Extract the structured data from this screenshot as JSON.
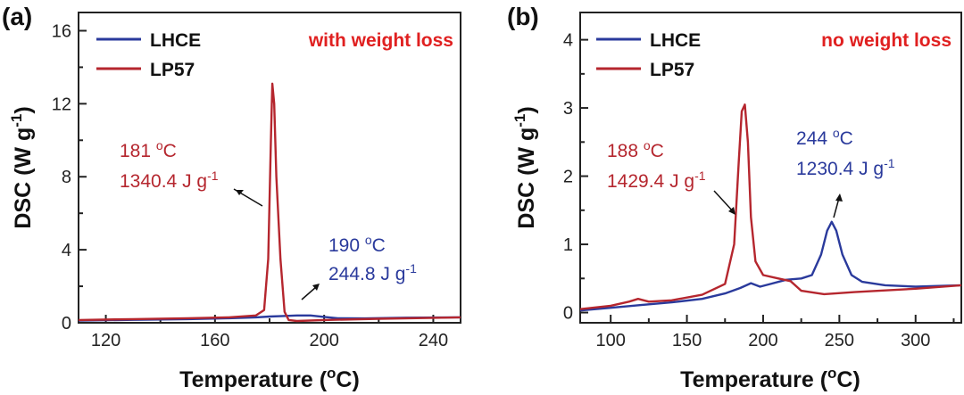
{
  "colors": {
    "LHCE": "#2a3a9c",
    "LP57": "#b5262e",
    "condition": "#e02020"
  },
  "chart_data": [
    {
      "type": "line",
      "panel_label": "(a)",
      "condition_text": "with weight loss",
      "xlabel": "Temperature (",
      "xlabel_sup": "o",
      "xlabel_tail": "C)",
      "ylabel": "DSC (W g",
      "ylabel_sup": "-1",
      "ylabel_tail": ")",
      "xlim": [
        110,
        250
      ],
      "ylim": [
        0,
        17
      ],
      "xticks": [
        "120",
        "160",
        "200",
        "240"
      ],
      "yticks": [
        "0",
        "4",
        "8",
        "12",
        "16"
      ],
      "legend": [
        "LHCE",
        "LP57"
      ],
      "series": [
        {
          "name": "LHCE",
          "x": [
            110,
            130,
            150,
            165,
            175,
            180,
            185,
            190,
            195,
            200,
            205,
            215,
            230,
            250
          ],
          "y": [
            0.12,
            0.16,
            0.2,
            0.25,
            0.3,
            0.34,
            0.37,
            0.4,
            0.4,
            0.32,
            0.25,
            0.24,
            0.28,
            0.3
          ]
        },
        {
          "name": "LP57",
          "x": [
            110,
            130,
            150,
            165,
            175,
            178,
            179.5,
            180.5,
            181,
            181.7,
            182.5,
            184,
            185.5,
            187,
            190,
            200,
            220,
            250
          ],
          "y": [
            0.15,
            0.2,
            0.25,
            0.3,
            0.4,
            0.7,
            3.5,
            10,
            13.1,
            12,
            8,
            3.5,
            0.6,
            0.15,
            0.1,
            0.15,
            0.22,
            0.3
          ]
        }
      ],
      "annotations": [
        {
          "series": "LP57",
          "line1": "181 ",
          "line1_sup": "o",
          "line1_tail": "C",
          "line2": "1340.4 J g",
          "line2_sup": "-1"
        },
        {
          "series": "LHCE",
          "line1": "190 ",
          "line1_sup": "o",
          "line1_tail": "C",
          "line2": "244.8 J g",
          "line2_sup": "-1"
        }
      ]
    },
    {
      "type": "line",
      "panel_label": "(b)",
      "condition_text": "no weight loss",
      "xlabel": "Temperature (",
      "xlabel_sup": "o",
      "xlabel_tail": "C)",
      "ylabel": "DSC (W g",
      "ylabel_sup": "-1",
      "ylabel_tail": ")",
      "xlim": [
        80,
        330
      ],
      "ylim": [
        -0.15,
        4.4
      ],
      "xticks": [
        "100",
        "150",
        "200",
        "250",
        "300"
      ],
      "yticks": [
        "0",
        "1",
        "2",
        "3",
        "4"
      ],
      "legend": [
        "LHCE",
        "LP57"
      ],
      "series": [
        {
          "name": "LHCE",
          "x": [
            80,
            100,
            120,
            140,
            160,
            175,
            185,
            192,
            198,
            205,
            215,
            225,
            232,
            238,
            242,
            245,
            248,
            252,
            258,
            265,
            280,
            300,
            330
          ],
          "y": [
            0.03,
            0.07,
            0.11,
            0.15,
            0.2,
            0.28,
            0.36,
            0.43,
            0.38,
            0.42,
            0.48,
            0.5,
            0.55,
            0.85,
            1.2,
            1.33,
            1.2,
            0.85,
            0.55,
            0.45,
            0.4,
            0.38,
            0.4
          ]
        },
        {
          "name": "LP57",
          "x": [
            80,
            100,
            112,
            118,
            125,
            140,
            160,
            175,
            181,
            184,
            186,
            188,
            190,
            192,
            195,
            200,
            210,
            218,
            225,
            240,
            260,
            300,
            330
          ],
          "y": [
            0.05,
            0.1,
            0.16,
            0.2,
            0.16,
            0.18,
            0.26,
            0.42,
            1.0,
            2.2,
            2.95,
            3.05,
            2.5,
            1.4,
            0.75,
            0.55,
            0.5,
            0.46,
            0.32,
            0.27,
            0.3,
            0.35,
            0.4
          ]
        }
      ],
      "annotations": [
        {
          "series": "LP57",
          "line1": "188 ",
          "line1_sup": "o",
          "line1_tail": "C",
          "line2": "1429.4 J g",
          "line2_sup": "-1"
        },
        {
          "series": "LHCE",
          "line1": "244 ",
          "line1_sup": "o",
          "line1_tail": "C",
          "line2": "1230.4 J g",
          "line2_sup": "-1"
        }
      ]
    }
  ]
}
